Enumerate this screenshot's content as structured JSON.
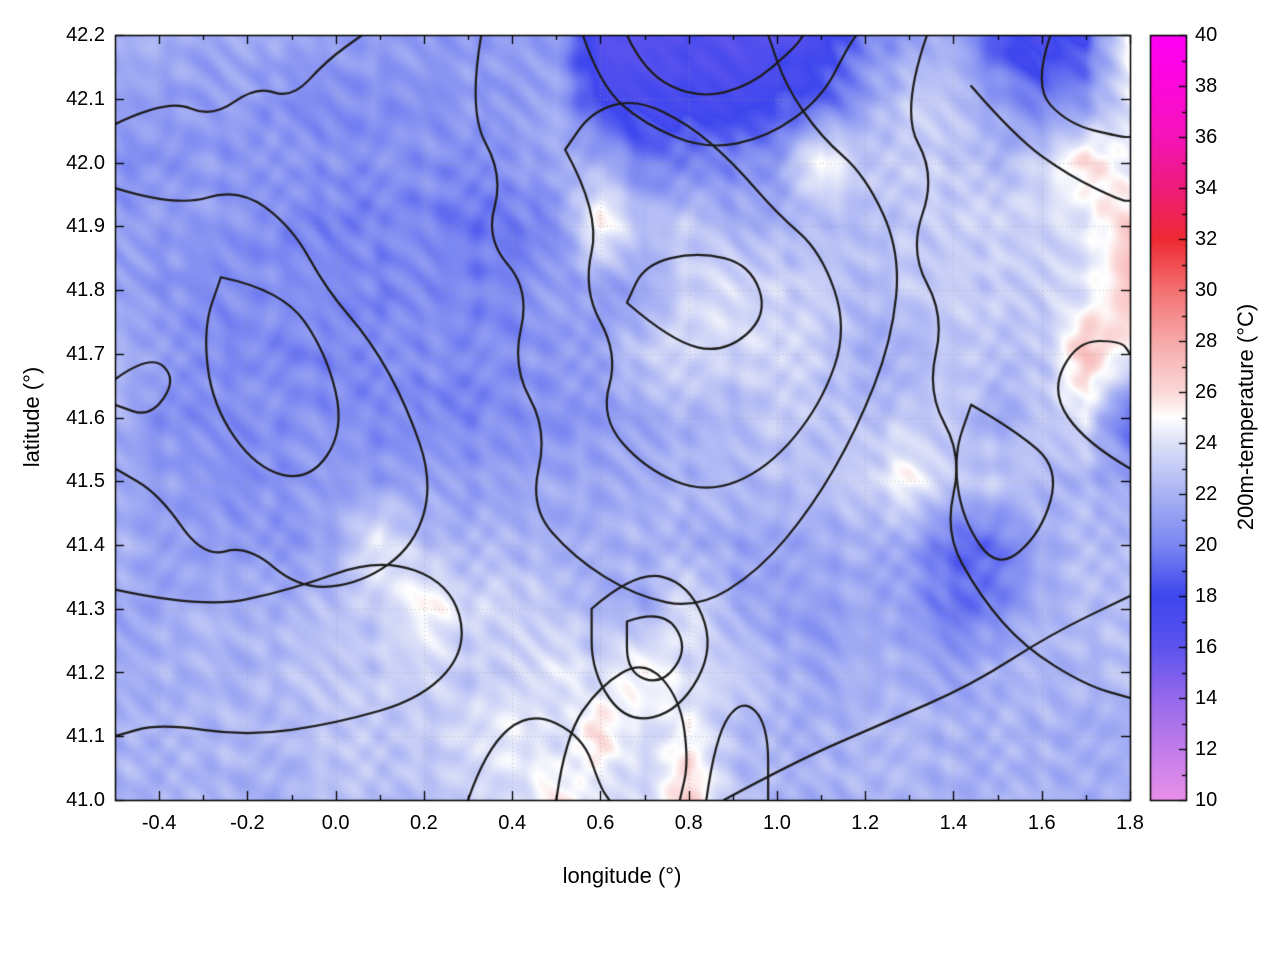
{
  "chart_data": {
    "type": "heatmap",
    "title": "",
    "xlabel": "longitude (°)",
    "ylabel": "latitude (°)",
    "xlim": [
      -0.5,
      1.8
    ],
    "ylim": [
      41.0,
      42.2
    ],
    "grid": {
      "visible": true,
      "color": "#9a9a9a",
      "style": "dotted"
    },
    "x_ticks": [
      -0.4,
      -0.2,
      0.0,
      0.2,
      0.4,
      0.6,
      0.8,
      1.0,
      1.2,
      1.4,
      1.6,
      1.8
    ],
    "x_tick_labels": [
      "-0.4",
      "-0.2",
      "0.0",
      "0.2",
      "0.4",
      "0.6",
      "0.8",
      "1.0",
      "1.2",
      "1.4",
      "1.6",
      "1.8"
    ],
    "y_ticks": [
      41.0,
      41.1,
      41.2,
      41.3,
      41.4,
      41.5,
      41.6,
      41.7,
      41.8,
      41.9,
      42.0,
      42.1,
      42.2
    ],
    "y_tick_labels": [
      "41.0",
      "41.1",
      "41.2",
      "41.3",
      "41.4",
      "41.5",
      "41.6",
      "41.7",
      "41.8",
      "41.9",
      "42.0",
      "42.1",
      "42.2"
    ],
    "colorbar": {
      "label": "200m-temperature (°C)",
      "min": 10,
      "max": 40,
      "ticks": [
        10,
        12,
        14,
        16,
        18,
        20,
        22,
        24,
        26,
        28,
        30,
        32,
        34,
        36,
        38,
        40
      ],
      "tick_labels": [
        "10",
        "12",
        "14",
        "16",
        "18",
        "20",
        "22",
        "24",
        "26",
        "28",
        "30",
        "32",
        "34",
        "36",
        "38",
        "40"
      ],
      "palette": [
        {
          "value": 10,
          "color": "#e98fe9"
        },
        {
          "value": 12,
          "color": "#c17ceb"
        },
        {
          "value": 14,
          "color": "#9669ec"
        },
        {
          "value": 16,
          "color": "#5c53ee"
        },
        {
          "value": 18,
          "color": "#3e46ee"
        },
        {
          "value": 20,
          "color": "#7b87f1"
        },
        {
          "value": 22,
          "color": "#a9b3f4"
        },
        {
          "value": 24,
          "color": "#dde1f8"
        },
        {
          "value": 25,
          "color": "#ffffff"
        },
        {
          "value": 26,
          "color": "#fbd8d8"
        },
        {
          "value": 28,
          "color": "#f7a9a9"
        },
        {
          "value": 30,
          "color": "#f37071"
        },
        {
          "value": 32,
          "color": "#ee2a33"
        },
        {
          "value": 34,
          "color": "#ee1c7a"
        },
        {
          "value": 36,
          "color": "#f513b8"
        },
        {
          "value": 38,
          "color": "#fc08db"
        },
        {
          "value": 40,
          "color": "#ff00f7"
        }
      ]
    },
    "heatmap": {
      "x0": -0.5,
      "dx": 0.1,
      "nx": 24,
      "y0": 41.0,
      "dy": 0.1,
      "ny": 13,
      "units": "°C",
      "values_south_to_north": [
        [
          22,
          22,
          22,
          22,
          22,
          22.5,
          22.5,
          22.5,
          23,
          23.5,
          26,
          23.5,
          23.5,
          27,
          22.5,
          22,
          22,
          22,
          22,
          22,
          22,
          22,
          22,
          22
        ],
        [
          22,
          22,
          22,
          22.5,
          22.5,
          23,
          23,
          23,
          23.5,
          24.5,
          23.5,
          26,
          23.5,
          25.5,
          22.5,
          22,
          22,
          22,
          22,
          22,
          22,
          22,
          22,
          22
        ],
        [
          22,
          22,
          22,
          22,
          22.5,
          22.5,
          23,
          23.5,
          23,
          23.5,
          24.5,
          23.5,
          25.5,
          23.5,
          23,
          22,
          21.5,
          22,
          22,
          21.5,
          22,
          22,
          22,
          22.5
        ],
        [
          21.5,
          21.5,
          22,
          22,
          22,
          22.5,
          23,
          25.5,
          23.5,
          23.5,
          23,
          22,
          21.5,
          24.5,
          21.5,
          21,
          21,
          21.5,
          21,
          19.5,
          20,
          22,
          22.5,
          22.5
        ],
        [
          22,
          21.5,
          21,
          21,
          21,
          21.5,
          24.5,
          22.5,
          22,
          22,
          22,
          22,
          22,
          22,
          21.5,
          21,
          21.5,
          22,
          21,
          19,
          19.5,
          21.5,
          22.5,
          22.5
        ],
        [
          21.5,
          21,
          21,
          20.5,
          20.5,
          21,
          21,
          21,
          21,
          21.5,
          21.5,
          21.5,
          22,
          22,
          22,
          22.5,
          22.5,
          23,
          25.5,
          23,
          23,
          22.5,
          22,
          21
        ],
        [
          22,
          20.5,
          20.5,
          20.5,
          20.5,
          20.5,
          20,
          20,
          20,
          20.5,
          20.5,
          21,
          21.5,
          22,
          22,
          23,
          22.5,
          22.5,
          23,
          23,
          21.5,
          23,
          24,
          18.5
        ],
        [
          22,
          21.5,
          20.5,
          20,
          20,
          20,
          20,
          20.5,
          20.5,
          20.5,
          21,
          21.5,
          23,
          23.5,
          23.5,
          23.5,
          23,
          22,
          22,
          23,
          23,
          22.5,
          27,
          24.5
        ],
        [
          21,
          20.5,
          20.5,
          20.5,
          20.5,
          20.5,
          20,
          20,
          20,
          20,
          21,
          21,
          21.5,
          23.5,
          24,
          23.5,
          23,
          22,
          23,
          23,
          23,
          23.5,
          24,
          27
        ],
        [
          21,
          21,
          21,
          20.5,
          20,
          20,
          20,
          20,
          19.5,
          19.5,
          20,
          26,
          22.5,
          23,
          22,
          22,
          22,
          22.5,
          23,
          23,
          23.5,
          23.5,
          24,
          26.5
        ],
        [
          20.5,
          20.5,
          21,
          20.5,
          20.5,
          20.5,
          20.5,
          20.5,
          20.5,
          21,
          21.5,
          22,
          19.5,
          19.5,
          20,
          21,
          25.5,
          23,
          23.5,
          23,
          22,
          23.5,
          26,
          24
        ],
        [
          21,
          21,
          21,
          21,
          20.5,
          20.5,
          20.5,
          20.5,
          21,
          20.5,
          21.5,
          17.5,
          17,
          17.5,
          17.5,
          18,
          18.5,
          21,
          23,
          22.5,
          21,
          19.5,
          20.5,
          24.5
        ],
        [
          21.5,
          22,
          21.5,
          21.5,
          21.5,
          21.5,
          21,
          21,
          21,
          21,
          20.5,
          16.5,
          16,
          16.5,
          16.5,
          16.5,
          17,
          20,
          21,
          21.5,
          18,
          17,
          18,
          25.5
        ]
      ]
    },
    "contours": {
      "color": "#1c1c1c",
      "polylines": [
        [
          [
            -0.5,
            42.06
          ],
          [
            -0.38,
            42.1
          ],
          [
            -0.28,
            42.07
          ],
          [
            -0.18,
            42.12
          ],
          [
            -0.1,
            42.1
          ],
          [
            -0.02,
            42.16
          ],
          [
            0.06,
            42.2
          ]
        ],
        [
          [
            -0.5,
            41.96
          ],
          [
            -0.36,
            41.93
          ],
          [
            -0.22,
            41.96
          ],
          [
            -0.1,
            41.9
          ],
          [
            -0.02,
            41.8
          ],
          [
            0.08,
            41.72
          ],
          [
            0.16,
            41.62
          ],
          [
            0.22,
            41.5
          ],
          [
            0.18,
            41.4
          ],
          [
            0.06,
            41.34
          ],
          [
            -0.08,
            41.33
          ],
          [
            -0.2,
            41.4
          ],
          [
            -0.3,
            41.38
          ],
          [
            -0.4,
            41.48
          ],
          [
            -0.5,
            41.52
          ]
        ],
        [
          [
            -0.26,
            41.82
          ],
          [
            -0.12,
            41.8
          ],
          [
            -0.02,
            41.7
          ],
          [
            0.02,
            41.58
          ],
          [
            -0.06,
            41.5
          ],
          [
            -0.18,
            41.52
          ],
          [
            -0.28,
            41.62
          ],
          [
            -0.3,
            41.74
          ],
          [
            -0.26,
            41.82
          ]
        ],
        [
          [
            0.33,
            42.2
          ],
          [
            0.3,
            42.08
          ],
          [
            0.38,
            41.98
          ],
          [
            0.34,
            41.88
          ],
          [
            0.44,
            41.8
          ],
          [
            0.4,
            41.68
          ],
          [
            0.48,
            41.58
          ],
          [
            0.44,
            41.46
          ],
          [
            0.54,
            41.38
          ],
          [
            0.68,
            41.32
          ],
          [
            0.82,
            41.3
          ],
          [
            0.96,
            41.36
          ],
          [
            1.08,
            41.46
          ],
          [
            1.18,
            41.58
          ],
          [
            1.26,
            41.72
          ],
          [
            1.28,
            41.86
          ],
          [
            1.2,
            41.98
          ],
          [
            1.1,
            42.04
          ],
          [
            1.02,
            42.12
          ],
          [
            0.98,
            42.2
          ]
        ],
        [
          [
            0.52,
            42.02
          ],
          [
            0.6,
            41.92
          ],
          [
            0.56,
            41.8
          ],
          [
            0.64,
            41.7
          ],
          [
            0.6,
            41.6
          ],
          [
            0.7,
            41.52
          ],
          [
            0.84,
            41.48
          ],
          [
            0.98,
            41.52
          ],
          [
            1.1,
            41.62
          ],
          [
            1.16,
            41.74
          ],
          [
            1.1,
            41.86
          ],
          [
            1.0,
            41.92
          ],
          [
            0.9,
            42.0
          ],
          [
            0.8,
            42.06
          ],
          [
            0.68,
            42.1
          ],
          [
            0.58,
            42.08
          ],
          [
            0.52,
            42.02
          ]
        ],
        [
          [
            0.66,
            41.78
          ],
          [
            0.76,
            41.72
          ],
          [
            0.88,
            41.7
          ],
          [
            0.98,
            41.76
          ],
          [
            0.94,
            41.84
          ],
          [
            0.82,
            41.86
          ],
          [
            0.7,
            41.84
          ],
          [
            0.66,
            41.78
          ]
        ],
        [
          [
            0.56,
            42.2
          ],
          [
            0.6,
            42.12
          ],
          [
            0.7,
            42.06
          ],
          [
            0.84,
            42.02
          ],
          [
            0.98,
            42.04
          ],
          [
            1.1,
            42.1
          ],
          [
            1.16,
            42.18
          ],
          [
            1.18,
            42.2
          ]
        ],
        [
          [
            0.66,
            42.2
          ],
          [
            0.7,
            42.14
          ],
          [
            0.82,
            42.1
          ],
          [
            0.94,
            42.12
          ],
          [
            1.04,
            42.18
          ],
          [
            1.06,
            42.2
          ]
        ],
        [
          [
            1.34,
            42.2
          ],
          [
            1.28,
            42.08
          ],
          [
            1.36,
            41.98
          ],
          [
            1.3,
            41.86
          ],
          [
            1.38,
            41.76
          ],
          [
            1.34,
            41.64
          ],
          [
            1.42,
            41.54
          ],
          [
            1.38,
            41.42
          ],
          [
            1.46,
            41.32
          ],
          [
            1.56,
            41.24
          ],
          [
            1.7,
            41.18
          ],
          [
            1.8,
            41.16
          ]
        ],
        [
          [
            1.44,
            41.62
          ],
          [
            1.54,
            41.58
          ],
          [
            1.64,
            41.52
          ],
          [
            1.6,
            41.42
          ],
          [
            1.5,
            41.36
          ],
          [
            1.42,
            41.44
          ],
          [
            1.4,
            41.54
          ],
          [
            1.44,
            41.62
          ]
        ],
        [
          [
            -0.5,
            41.33
          ],
          [
            -0.3,
            41.3
          ],
          [
            -0.1,
            41.33
          ],
          [
            0.1,
            41.38
          ],
          [
            0.26,
            41.34
          ],
          [
            0.3,
            41.24
          ],
          [
            0.2,
            41.16
          ],
          [
            0.0,
            41.12
          ],
          [
            -0.2,
            41.1
          ],
          [
            -0.4,
            41.12
          ],
          [
            -0.5,
            41.1
          ]
        ],
        [
          [
            0.3,
            41.0
          ],
          [
            0.34,
            41.08
          ],
          [
            0.44,
            41.14
          ],
          [
            0.56,
            41.1
          ],
          [
            0.6,
            41.02
          ],
          [
            0.62,
            41.0
          ]
        ],
        [
          [
            0.88,
            41.0
          ],
          [
            1.04,
            41.06
          ],
          [
            1.24,
            41.12
          ],
          [
            1.44,
            41.18
          ],
          [
            1.62,
            41.26
          ],
          [
            1.8,
            41.32
          ]
        ],
        [
          [
            0.58,
            41.3
          ],
          [
            0.68,
            41.36
          ],
          [
            0.8,
            41.34
          ],
          [
            0.86,
            41.24
          ],
          [
            0.78,
            41.14
          ],
          [
            0.66,
            41.12
          ],
          [
            0.58,
            41.2
          ],
          [
            0.58,
            41.3
          ]
        ],
        [
          [
            0.66,
            41.28
          ],
          [
            0.74,
            41.3
          ],
          [
            0.8,
            41.24
          ],
          [
            0.74,
            41.18
          ],
          [
            0.66,
            41.2
          ],
          [
            0.66,
            41.28
          ]
        ],
        [
          [
            1.44,
            42.12
          ],
          [
            1.54,
            42.04
          ],
          [
            1.66,
            41.98
          ],
          [
            1.78,
            41.94
          ],
          [
            1.8,
            41.94
          ]
        ],
        [
          [
            1.8,
            41.52
          ],
          [
            1.7,
            41.56
          ],
          [
            1.62,
            41.64
          ],
          [
            1.68,
            41.72
          ],
          [
            1.78,
            41.72
          ],
          [
            1.8,
            41.7
          ]
        ],
        [
          [
            0.5,
            41.0
          ],
          [
            0.52,
            41.1
          ],
          [
            0.6,
            41.18
          ],
          [
            0.7,
            41.22
          ],
          [
            0.78,
            41.16
          ],
          [
            0.8,
            41.06
          ],
          [
            0.78,
            41.0
          ]
        ],
        [
          [
            0.84,
            41.0
          ],
          [
            0.86,
            41.1
          ],
          [
            0.92,
            41.16
          ],
          [
            0.98,
            41.12
          ],
          [
            0.98,
            41.0
          ]
        ],
        [
          [
            -0.5,
            41.66
          ],
          [
            -0.42,
            41.7
          ],
          [
            -0.36,
            41.66
          ],
          [
            -0.42,
            41.6
          ],
          [
            -0.5,
            41.62
          ]
        ],
        [
          [
            1.62,
            42.2
          ],
          [
            1.58,
            42.12
          ],
          [
            1.66,
            42.06
          ],
          [
            1.78,
            42.04
          ],
          [
            1.8,
            42.04
          ]
        ]
      ]
    },
    "frame_color": "#000000",
    "background_color": "#ffffff"
  }
}
